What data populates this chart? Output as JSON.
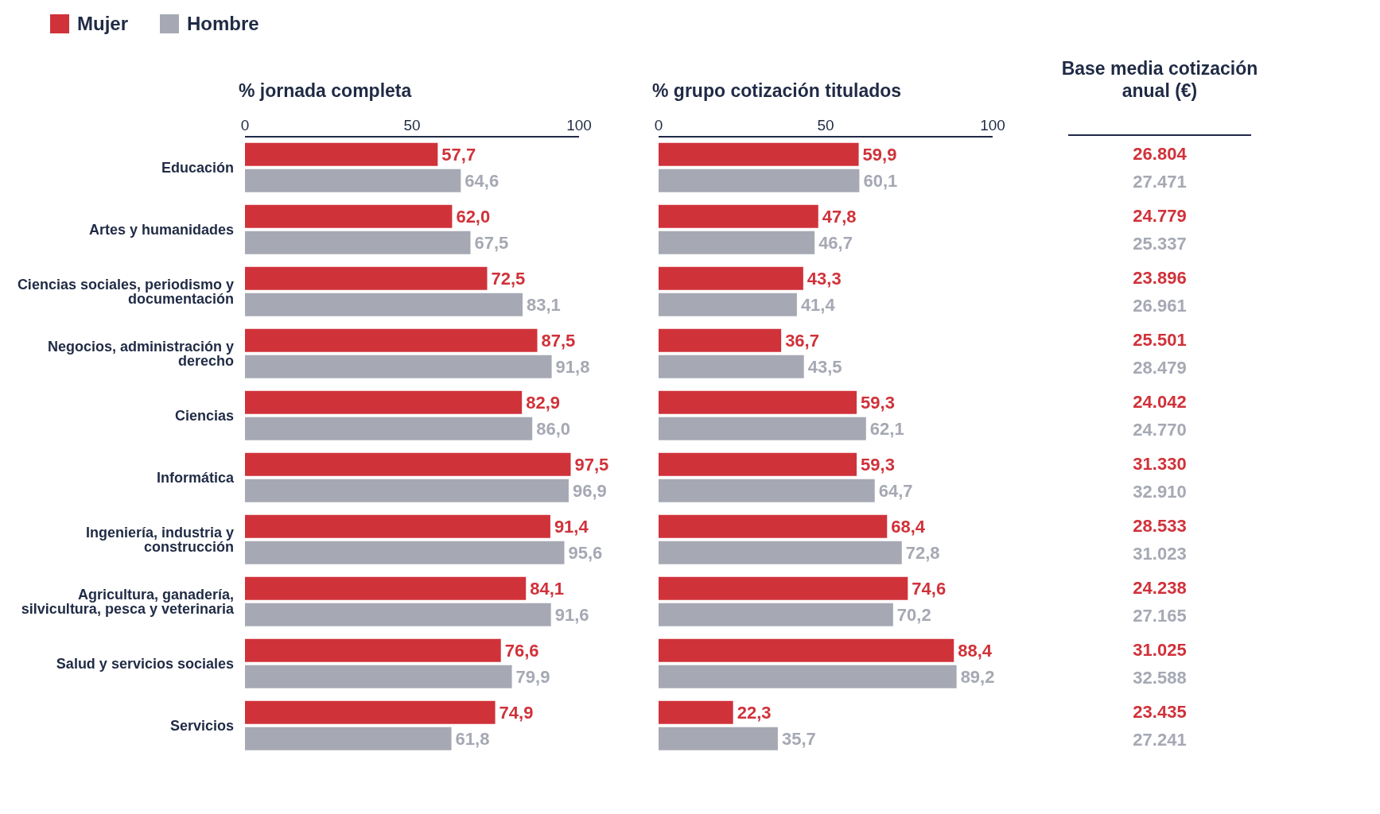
{
  "chart_data": [
    {
      "type": "bar",
      "orientation": "horizontal",
      "title": "% jornada completa",
      "legend": "top left",
      "xlim": [
        0,
        100
      ],
      "xticks": [
        0,
        50,
        100
      ],
      "categories": [
        "Educación",
        "Artes y humanidades",
        "Ciencias sociales, periodismo y documentación",
        "Negocios, administración y derecho",
        "Ciencias",
        "Informática",
        "Ingeniería, industria y construcción",
        "Agricultura, ganadería, silvicultura, pesca y veterinaria",
        "Salud y servicios sociales",
        "Servicios"
      ],
      "series": [
        {
          "name": "Mujer",
          "color": "#d0323a",
          "values": [
            57.7,
            62.0,
            72.5,
            87.5,
            82.9,
            97.5,
            91.4,
            84.1,
            76.6,
            74.9
          ],
          "value_labels": [
            "57,7",
            "62,0",
            "72,5",
            "87,5",
            "82,9",
            "97,5",
            "91,4",
            "84,1",
            "76,6",
            "74,9"
          ]
        },
        {
          "name": "Hombre",
          "color": "#a6a9b4",
          "values": [
            64.6,
            67.5,
            83.1,
            91.8,
            86.0,
            96.9,
            95.6,
            91.6,
            79.9,
            61.8
          ],
          "value_labels": [
            "64,6",
            "67,5",
            "83,1",
            "91,8",
            "86,0",
            "96,9",
            "95,6",
            "91,6",
            "79,9",
            "61,8"
          ]
        }
      ]
    },
    {
      "type": "bar",
      "orientation": "horizontal",
      "title": "% grupo cotización titulados",
      "xlim": [
        0,
        100
      ],
      "xticks": [
        0,
        50,
        100
      ],
      "tick_labels": "x",
      "series": [
        {
          "color": "#d0323a",
          "values": [
            59.9,
            47.8,
            43.3,
            36.7,
            59.3,
            59.3,
            68.4,
            74.6,
            88.4,
            22.3
          ],
          "value_labels": [
            "59,9",
            "47,8",
            "43,3",
            "36,7",
            "59,3",
            "59,3",
            "68,4",
            "74,6",
            "88,4",
            "22,3"
          ]
        },
        {
          "color": "#a6a9b4",
          "values": [
            60.1,
            46.7,
            41.4,
            43.5,
            62.1,
            64.7,
            72.8,
            70.2,
            89.2,
            35.7
          ],
          "value_labels": [
            "60,1",
            "46,7",
            "41,4",
            "43,5",
            "62,1",
            "64,7",
            "72,8",
            "70,2",
            "89,2",
            "35,7"
          ]
        }
      ]
    },
    {
      "type": "other",
      "title": "Base media cotización anual (€)",
      "annotations": [
        "26.804",
        "27.471",
        "24.779",
        "25.337",
        "23.896",
        "26.961",
        "25.501",
        "28.479",
        "24.042",
        "24.770",
        "31.330",
        "32.910",
        "28.533",
        "31.023",
        "24.238",
        "27.165",
        "31.025",
        "32.588",
        "23.435",
        "27.241"
      ]
    }
  ]
}
